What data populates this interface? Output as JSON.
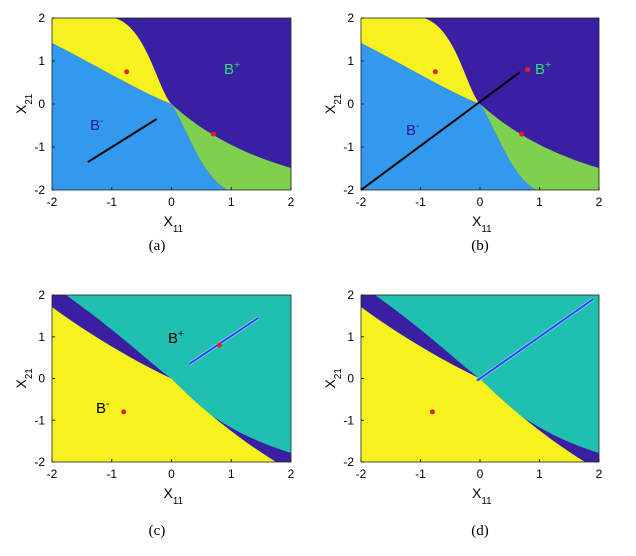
{
  "panels": [
    {
      "caption": "(a)",
      "xlabel": {
        "base": "X",
        "sub": "11"
      },
      "ylabel": {
        "base": "X",
        "sub": "21"
      },
      "xlim": [
        -2,
        2
      ],
      "ylim": [
        -2,
        2
      ],
      "xticks": [
        -2,
        -1,
        0,
        1,
        2
      ],
      "yticks": [
        -2,
        -1,
        0,
        1,
        2
      ],
      "labels": [
        {
          "base": "B",
          "sup": "-"
        },
        {
          "base": "B",
          "sup": "+"
        }
      ],
      "points": [
        {
          "x": -0.75,
          "y": 0.75
        },
        {
          "x": 0.7,
          "y": -0.7
        }
      ],
      "segments": [
        {
          "x": [
            -1.4,
            -0.25
          ],
          "y": [
            -1.35,
            -0.35
          ]
        }
      ]
    },
    {
      "caption": "(b)",
      "xlabel": {
        "base": "X",
        "sub": "11"
      },
      "ylabel": {
        "base": "X",
        "sub": "21"
      },
      "xlim": [
        -2,
        2
      ],
      "ylim": [
        -2,
        2
      ],
      "xticks": [
        -2,
        -1,
        0,
        1,
        2
      ],
      "yticks": [
        -2,
        -1,
        0,
        1,
        2
      ],
      "labels": [
        {
          "base": "B",
          "sup": "-"
        },
        {
          "base": "B",
          "sup": "+"
        }
      ],
      "points": [
        {
          "x": -0.75,
          "y": 0.75
        },
        {
          "x": 0.7,
          "y": -0.7
        },
        {
          "x": 0.8,
          "y": 0.8
        }
      ],
      "segments": [
        {
          "x": [
            -2,
            0.67
          ],
          "y": [
            -2,
            0.74
          ]
        }
      ]
    },
    {
      "caption": "(c)",
      "xlabel": {
        "base": "X",
        "sub": "11"
      },
      "ylabel": {
        "base": "X",
        "sub": "21"
      },
      "xlim": [
        -2,
        2
      ],
      "ylim": [
        -2,
        2
      ],
      "xticks": [
        -2,
        -1,
        0,
        1,
        2
      ],
      "yticks": [
        -2,
        -1,
        0,
        1,
        2
      ],
      "labels": [
        {
          "base": "B",
          "sup": "+"
        },
        {
          "base": "B",
          "sup": "-"
        }
      ],
      "points": [
        {
          "x": 0.8,
          "y": 0.8
        },
        {
          "x": -0.8,
          "y": -0.8
        }
      ],
      "segments": [
        {
          "x": [
            0.3,
            1.45
          ],
          "y": [
            0.35,
            1.45
          ]
        }
      ]
    },
    {
      "caption": "(d)",
      "xlabel": {
        "base": "X",
        "sub": "11"
      },
      "ylabel": {
        "base": "X",
        "sub": "21"
      },
      "xlim": [
        -2,
        2
      ],
      "ylim": [
        -2,
        2
      ],
      "xticks": [
        -2,
        -1,
        0,
        1,
        2
      ],
      "yticks": [
        -2,
        -1,
        0,
        1,
        2
      ],
      "labels": [],
      "points": [
        {
          "x": -0.8,
          "y": -0.8
        }
      ],
      "segments": [
        {
          "x": [
            -0.05,
            1.9
          ],
          "y": [
            -0.05,
            1.9
          ]
        }
      ]
    }
  ]
}
